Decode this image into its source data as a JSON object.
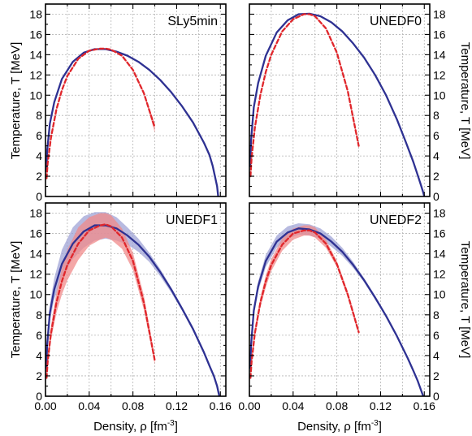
{
  "figure": {
    "xlabel": "Density, ρ [fm",
    "xlabel_sup": "-3",
    "xlabel_end": "]",
    "ylabel": "Temperature, T [MeV]"
  },
  "colors": {
    "blue": "#2e3192",
    "red": "#e0262b",
    "blue_band": "#9fa3d6",
    "red_band": "#f08a8a",
    "grid": "#b5b5b5"
  },
  "chart_data": [
    {
      "type": "line",
      "title": "SLy5min",
      "xlim": [
        0,
        0.165
      ],
      "ylim": [
        0,
        19
      ],
      "xticks": [
        "0.00",
        "0.04",
        "0.08",
        "0.12",
        "0.16"
      ],
      "yticks": [
        "0",
        "2",
        "4",
        "6",
        "8",
        "10",
        "12",
        "14",
        "16",
        "18"
      ],
      "grid": true,
      "series": [
        {
          "style": "solid",
          "color": "blue",
          "x": [
            0.0008,
            0.0015,
            0.004,
            0.008,
            0.015,
            0.025,
            0.035,
            0.045,
            0.055,
            0.065,
            0.075,
            0.085,
            0.095,
            0.105,
            0.115,
            0.125,
            0.135,
            0.145,
            0.15,
            0.153,
            0.155,
            0.157,
            0.158
          ],
          "y": [
            2.5,
            4.5,
            7.2,
            9.3,
            11.6,
            13.3,
            14.2,
            14.55,
            14.55,
            14.3,
            13.9,
            13.3,
            12.5,
            11.5,
            10.3,
            8.9,
            7.3,
            5.3,
            4.1,
            3.0,
            2.0,
            1.0,
            0.0
          ]
        },
        {
          "style": "dashed",
          "color": "red",
          "x": [
            0.001,
            0.002,
            0.005,
            0.01,
            0.015,
            0.02,
            0.03,
            0.04,
            0.05,
            0.055,
            0.06,
            0.07,
            0.08,
            0.09,
            0.1
          ],
          "y": [
            1.8,
            3.3,
            5.8,
            8.6,
            10.5,
            11.9,
            13.6,
            14.4,
            14.6,
            14.6,
            14.5,
            13.9,
            12.5,
            10.2,
            6.8
          ],
          "band_hi": [
            1.8,
            3.3,
            5.8,
            8.6,
            10.5,
            11.9,
            13.6,
            14.4,
            14.6,
            14.6,
            14.5,
            13.9,
            12.5,
            10.3,
            7.2
          ],
          "band_lo": [
            1.8,
            3.3,
            5.8,
            8.6,
            10.5,
            11.9,
            13.6,
            14.4,
            14.6,
            14.6,
            14.5,
            13.9,
            12.5,
            10.1,
            6.3
          ]
        }
      ]
    },
    {
      "type": "line",
      "title": "UNEDF0",
      "xlim": [
        0,
        0.165
      ],
      "ylim": [
        0,
        19
      ],
      "xticks": [
        "0.00",
        "0.04",
        "0.08",
        "0.12",
        "0.16"
      ],
      "yticks": [
        "0",
        "2",
        "4",
        "6",
        "8",
        "10",
        "12",
        "14",
        "16",
        "18"
      ],
      "grid": true,
      "series": [
        {
          "style": "solid",
          "color": "blue",
          "x": [
            0.0008,
            0.0015,
            0.004,
            0.008,
            0.015,
            0.025,
            0.035,
            0.045,
            0.055,
            0.065,
            0.075,
            0.085,
            0.095,
            0.105,
            0.115,
            0.125,
            0.135,
            0.143,
            0.15,
            0.154,
            0.157,
            0.159,
            0.16
          ],
          "y": [
            3.0,
            5.5,
            8.8,
            11.2,
            13.9,
            16.2,
            17.4,
            18.0,
            18.05,
            17.8,
            17.2,
            16.3,
            15.1,
            13.7,
            12.0,
            10.0,
            7.6,
            5.4,
            3.4,
            2.1,
            1.1,
            0.4,
            0.0
          ]
        },
        {
          "style": "dashed",
          "color": "red",
          "x": [
            0.001,
            0.002,
            0.005,
            0.01,
            0.015,
            0.02,
            0.03,
            0.04,
            0.05,
            0.055,
            0.06,
            0.07,
            0.08,
            0.09,
            0.1
          ],
          "y": [
            2.0,
            3.8,
            6.8,
            10.0,
            12.3,
            14.0,
            16.3,
            17.5,
            18.0,
            18.0,
            17.8,
            16.6,
            14.2,
            10.4,
            5.0
          ],
          "band_hi": [
            2.0,
            3.8,
            6.8,
            10.0,
            12.3,
            14.0,
            16.3,
            17.5,
            18.0,
            18.0,
            17.8,
            16.6,
            14.2,
            10.5,
            5.3
          ],
          "band_lo": [
            2.0,
            3.8,
            6.8,
            10.0,
            12.3,
            14.0,
            16.3,
            17.5,
            18.0,
            18.0,
            17.8,
            16.6,
            14.2,
            10.3,
            4.7
          ]
        }
      ]
    },
    {
      "type": "line",
      "title": "UNEDF1",
      "xlim": [
        0,
        0.165
      ],
      "ylim": [
        0,
        19
      ],
      "xticks": [
        "0.00",
        "0.04",
        "0.08",
        "0.12",
        "0.16"
      ],
      "yticks": [
        "0",
        "2",
        "4",
        "6",
        "8",
        "10",
        "12",
        "14",
        "16",
        "18"
      ],
      "grid": true,
      "series": [
        {
          "style": "solid",
          "color": "blue",
          "x": [
            0.0008,
            0.0015,
            0.004,
            0.008,
            0.015,
            0.025,
            0.035,
            0.045,
            0.055,
            0.065,
            0.075,
            0.085,
            0.095,
            0.105,
            0.115,
            0.125,
            0.135,
            0.145,
            0.15,
            0.154,
            0.157,
            0.159
          ],
          "y": [
            2.8,
            5.0,
            8.2,
            10.5,
            13.0,
            15.0,
            16.2,
            16.8,
            16.8,
            16.5,
            15.8,
            14.9,
            13.7,
            12.2,
            10.5,
            8.6,
            6.6,
            4.3,
            3.0,
            2.0,
            1.0,
            0.0
          ],
          "band_hi": [
            3.0,
            5.6,
            9.0,
            11.6,
            14.4,
            16.6,
            17.7,
            18.1,
            18.1,
            17.6,
            16.6,
            15.5,
            14.1,
            12.5,
            10.7,
            8.8,
            6.8,
            4.5,
            3.2,
            2.1,
            1.1,
            0.0
          ],
          "band_lo": [
            2.6,
            4.5,
            7.4,
            9.5,
            11.7,
            13.5,
            14.6,
            15.3,
            15.5,
            15.3,
            14.9,
            14.2,
            13.2,
            11.8,
            10.2,
            8.4,
            6.4,
            4.1,
            2.8,
            1.9,
            0.9,
            0.0
          ]
        },
        {
          "style": "dashed",
          "color": "red",
          "x": [
            0.001,
            0.002,
            0.005,
            0.01,
            0.015,
            0.02,
            0.03,
            0.04,
            0.05,
            0.055,
            0.06,
            0.07,
            0.08,
            0.09,
            0.1
          ],
          "y": [
            1.8,
            3.4,
            6.2,
            9.2,
            11.3,
            12.9,
            15.0,
            16.3,
            16.8,
            16.9,
            16.7,
            15.6,
            13.3,
            9.2,
            3.5
          ],
          "band_hi": [
            2.0,
            3.8,
            6.9,
            10.2,
            12.6,
            14.4,
            16.6,
            17.6,
            18.0,
            18.0,
            17.8,
            16.5,
            14.1,
            9.9,
            3.9
          ],
          "band_lo": [
            1.6,
            3.0,
            5.5,
            8.2,
            10.0,
            11.4,
            13.4,
            14.8,
            15.4,
            15.6,
            15.4,
            14.5,
            12.4,
            8.5,
            3.1
          ]
        }
      ]
    },
    {
      "type": "line",
      "title": "UNEDF2",
      "xlim": [
        0,
        0.165
      ],
      "ylim": [
        0,
        19
      ],
      "xticks": [
        "0.00",
        "0.04",
        "0.08",
        "0.12",
        "0.16"
      ],
      "yticks": [
        "0",
        "2",
        "4",
        "6",
        "8",
        "10",
        "12",
        "14",
        "16",
        "18"
      ],
      "grid": true,
      "series": [
        {
          "style": "solid",
          "color": "blue",
          "x": [
            0.0008,
            0.0015,
            0.004,
            0.008,
            0.015,
            0.025,
            0.035,
            0.045,
            0.055,
            0.065,
            0.075,
            0.085,
            0.095,
            0.105,
            0.115,
            0.125,
            0.135,
            0.145,
            0.15,
            0.154,
            0.157,
            0.159
          ],
          "y": [
            2.8,
            5.0,
            8.4,
            10.8,
            13.3,
            15.2,
            16.1,
            16.5,
            16.4,
            16.0,
            15.2,
            14.2,
            12.9,
            11.4,
            9.7,
            7.9,
            5.9,
            3.7,
            2.5,
            1.5,
            0.6,
            0.0
          ],
          "band_hi": [
            2.9,
            5.3,
            8.8,
            11.3,
            13.9,
            15.8,
            16.7,
            17.0,
            16.9,
            16.5,
            15.7,
            14.6,
            13.2,
            11.6,
            9.9,
            8.0,
            6.0,
            3.8,
            2.6,
            1.6,
            0.6,
            0.0
          ],
          "band_lo": [
            2.7,
            4.8,
            8.0,
            10.3,
            12.7,
            14.6,
            15.5,
            15.9,
            15.8,
            15.5,
            14.7,
            13.8,
            12.6,
            11.2,
            9.5,
            7.8,
            5.8,
            3.6,
            2.4,
            1.4,
            0.6,
            0.0
          ]
        },
        {
          "style": "dashed",
          "color": "red",
          "x": [
            0.001,
            0.002,
            0.005,
            0.01,
            0.015,
            0.02,
            0.03,
            0.04,
            0.05,
            0.055,
            0.06,
            0.07,
            0.08,
            0.09,
            0.1
          ],
          "y": [
            1.8,
            3.4,
            6.2,
            9.2,
            11.3,
            12.9,
            14.9,
            16.0,
            16.3,
            16.3,
            16.1,
            15.0,
            13.0,
            10.0,
            6.3
          ],
          "band_hi": [
            1.9,
            3.6,
            6.5,
            9.7,
            11.9,
            13.5,
            15.5,
            16.5,
            16.8,
            16.8,
            16.6,
            15.4,
            13.3,
            10.3,
            6.6
          ],
          "band_lo": [
            1.7,
            3.2,
            5.9,
            8.7,
            10.7,
            12.3,
            14.3,
            15.4,
            15.8,
            15.8,
            15.6,
            14.6,
            12.7,
            9.7,
            6.0
          ]
        }
      ]
    }
  ]
}
